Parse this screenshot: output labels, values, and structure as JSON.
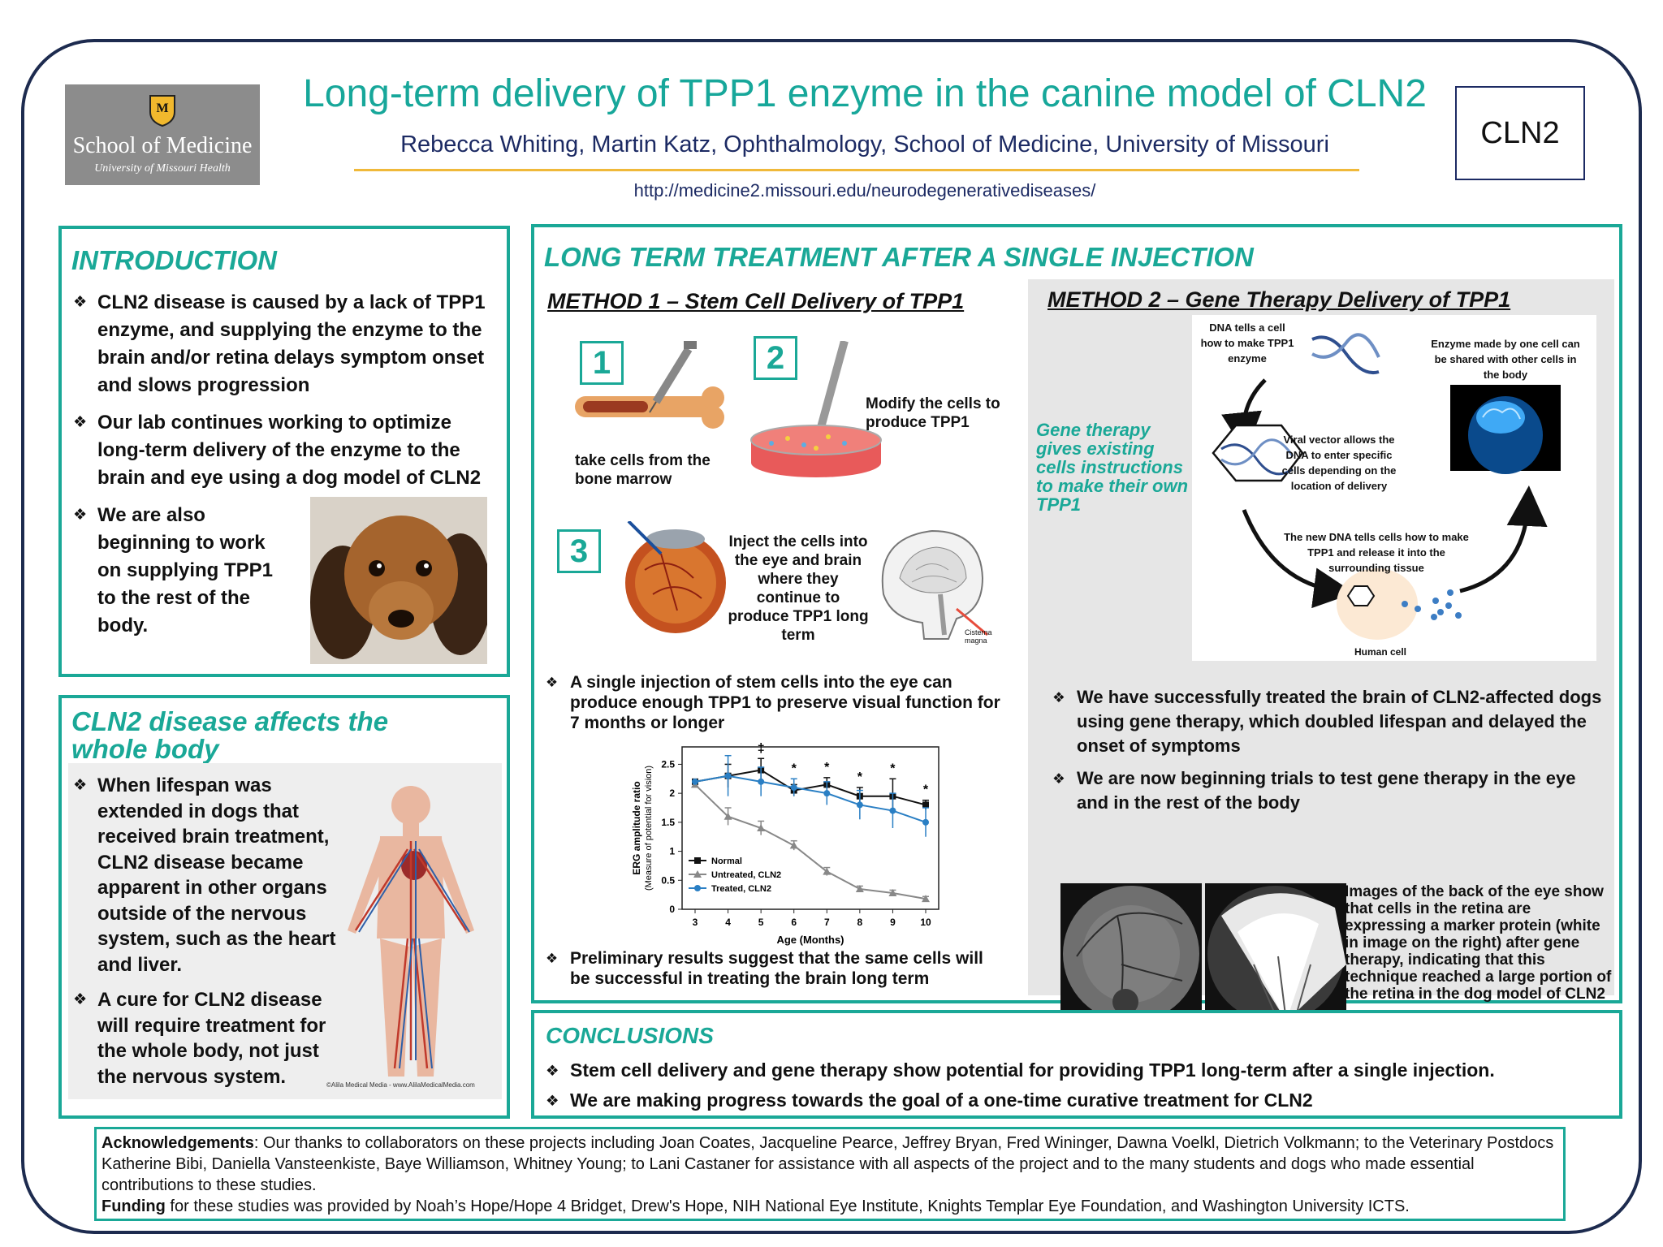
{
  "header": {
    "logo_name": "School of Medicine",
    "logo_sub": "University of Missouri Health",
    "title": "Long-term delivery of TPP1 enzyme in the canine model of CLN2",
    "authors": "Rebecca Whiting, Martin Katz, Ophthalmology, School of Medicine, University of Missouri",
    "url": "http://medicine2.missouri.edu/neurodegenerativediseases/",
    "tag": "CLN2"
  },
  "intro": {
    "heading": "INTRODUCTION",
    "bullets": [
      "CLN2 disease is caused by a lack of TPP1 enzyme, and supplying the enzyme to the brain and/or retina delays symptom onset and slows progression",
      "Our lab continues working to optimize long-term delivery of the enzyme to the brain and eye using a dog model of CLN2",
      "We are also beginning to work on supplying TPP1 to the rest of the body."
    ]
  },
  "cln2_body": {
    "heading": "CLN2 disease affects the whole body",
    "bullets": [
      "When lifespan was extended in dogs that received brain treatment, CLN2 disease became apparent in other organs outside of the nervous system, such as the heart and liver.",
      "A cure for CLN2 disease will require treatment for the whole body, not just the nervous system."
    ],
    "credit": "©Alila Medical Media - www.AlilaMedicalMedia.com"
  },
  "long_term": {
    "heading": "LONG TERM TREATMENT AFTER A SINGLE INJECTION",
    "method1": {
      "title": "METHOD 1 – Stem Cell Delivery of TPP1",
      "steps": [
        {
          "num": "1",
          "caption": "take cells from the bone marrow"
        },
        {
          "num": "2",
          "caption": "Modify the cells to produce TPP1"
        },
        {
          "num": "3",
          "caption": "Inject the cells into the eye and brain where they continue to produce TPP1 long term"
        }
      ],
      "cisterna_label": "Cisterna magna",
      "bullet1": "A single injection of stem cells into the eye can produce enough TPP1 to preserve visual function for 7 months or longer",
      "bullet2": "Preliminary results suggest that the same cells will be successful in treating the brain long term"
    },
    "method2": {
      "title": "METHOD 2 – Gene Therapy Delivery of TPP1",
      "side_text": "Gene therapy gives existing cells instructions to make their own TPP1",
      "label_dna": "DNA tells a cell how to make TPP1 enzyme",
      "label_enzyme": "Enzyme made by one cell can be shared with other cells in the body",
      "label_viral": "Viral vector allows the DNA to enter specific cells depending on the location of delivery",
      "label_newdna": "The new DNA tells cells how to make TPP1 and release it into the surrounding tissue",
      "label_human": "Human cell",
      "bullets": [
        "We have successfully treated the brain of CLN2-affected dogs using gene therapy, which doubled lifespan and delayed the onset of symptoms",
        "We are now beginning trials to test gene therapy in the eye and in the rest of the body"
      ],
      "fundus_caption": "Images of the back of the eye show that cells in the retina are expressing a marker protein (white in image on the right) after gene therapy, indicating that this technique reached a large portion of the retina in the dog model of CLN2"
    }
  },
  "conclusions": {
    "heading": "CONCLUSIONS",
    "bullets": [
      "Stem cell delivery and gene therapy show potential for providing TPP1 long-term after a single injection.",
      "We are making progress towards the goal of a one-time curative treatment for CLN2"
    ]
  },
  "footer": {
    "ack_label": "Acknowledgements",
    "ack_text": ": Our thanks to collaborators on these projects including Joan Coates, Jacqueline Pearce, Jeffrey Bryan, Fred Wininger, Dawna Voelkl, Dietrich Volkmann; to the Veterinary Postdocs Katherine Bibi, Daniella Vansteenkiste, Baye Williamson, Whitney Young; to Lani Castaner for assistance with all aspects of the project and to the many students and dogs who made essential contributions to these studies.",
    "funding_label": "Funding",
    "funding_text": " for these studies was provided by Noah’s Hope/Hope 4 Bridget, Drew's Hope, NIH National Eye Institute, Knights Templar Eye Foundation, and Washington University ICTS."
  },
  "chart_data": {
    "type": "line",
    "xlabel": "Age (Months)",
    "ylabel": "ERG amplitude ratio",
    "ylabel2": "(Measure of potential for vision)",
    "x": [
      3,
      4,
      5,
      6,
      7,
      8,
      9,
      10
    ],
    "xlim": [
      3,
      10
    ],
    "ylim": [
      0,
      2.5
    ],
    "yticks": [
      0,
      0.5,
      1,
      1.5,
      2,
      2.5
    ],
    "series": [
      {
        "name": "Normal",
        "color": "#111111",
        "marker": "square",
        "values": [
          2.2,
          2.3,
          2.4,
          2.05,
          2.15,
          1.95,
          1.95,
          1.8
        ],
        "errors": [
          0,
          0.2,
          0.2,
          0.1,
          0.12,
          0.15,
          0.3,
          0.08
        ]
      },
      {
        "name": "Untreated, CLN2",
        "color": "#888888",
        "marker": "triangle",
        "values": [
          2.15,
          1.6,
          1.4,
          1.1,
          0.65,
          0.35,
          0.28,
          0.18
        ],
        "errors": [
          0,
          0.15,
          0.12,
          0.08,
          0.07,
          0.05,
          0.05,
          0.04
        ]
      },
      {
        "name": "Treated, CLN2",
        "color": "#2a7fc4",
        "marker": "circle",
        "values": [
          2.2,
          2.3,
          2.2,
          2.1,
          2.0,
          1.8,
          1.7,
          1.5
        ],
        "errors": [
          0,
          0.35,
          0.25,
          0.15,
          0.2,
          0.25,
          0.3,
          0.25
        ]
      }
    ],
    "annotations": [
      {
        "x": 5,
        "text": "‡"
      },
      {
        "x": 6,
        "text": "*"
      },
      {
        "x": 7,
        "text": "*"
      },
      {
        "x": 8,
        "text": "*"
      },
      {
        "x": 9,
        "text": "*"
      },
      {
        "x": 10,
        "text": "*"
      }
    ],
    "legend": "bottom-left"
  }
}
